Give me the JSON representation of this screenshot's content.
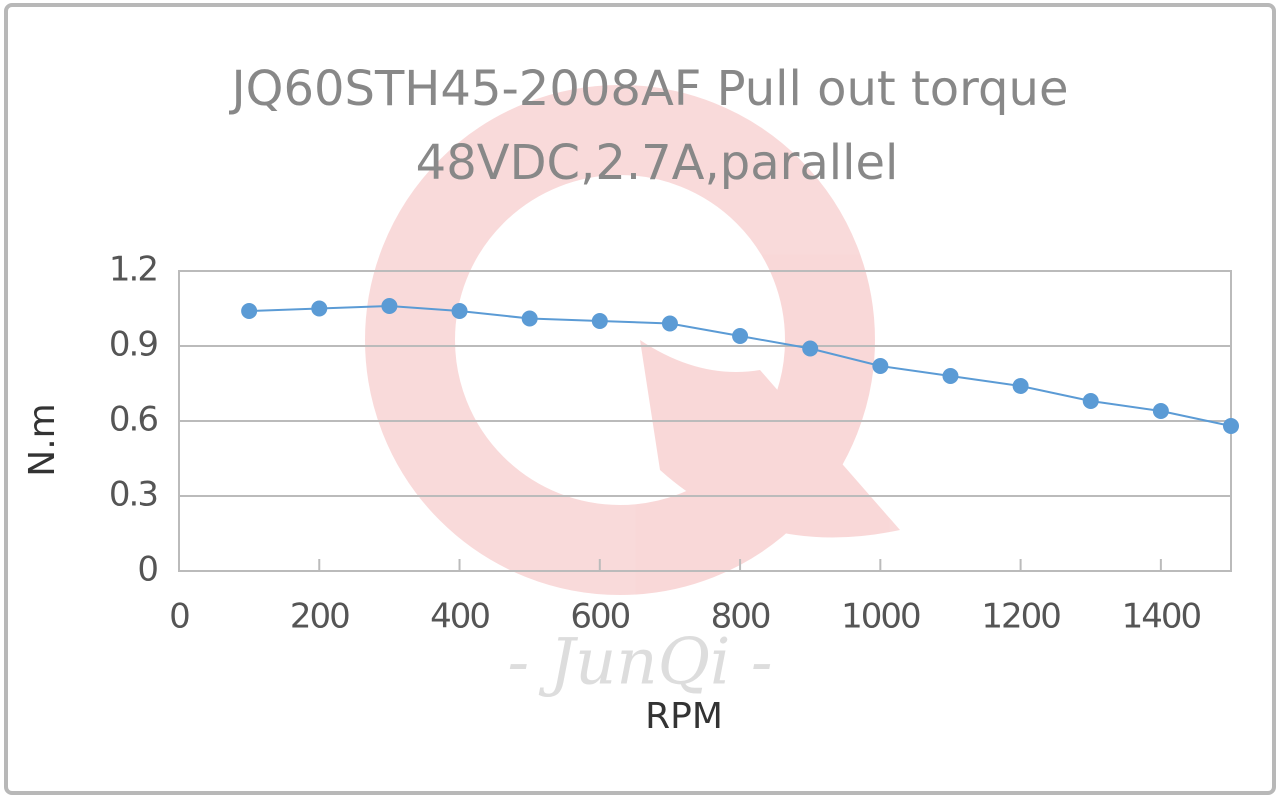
{
  "chart_data": {
    "type": "line",
    "title": [
      "JQ60STH45-2008AF Pull out torque",
      "48VDC,2.7A,parallel"
    ],
    "watermark": "- JunQi -",
    "x_label": "RPM",
    "y_label": "N.m",
    "x": [
      100,
      200,
      300,
      400,
      500,
      600,
      700,
      800,
      900,
      1000,
      1100,
      1200,
      1300,
      1400,
      1500
    ],
    "series": [
      {
        "name": "Pull out torque",
        "color": "#5b9bd5",
        "values": [
          1.04,
          1.05,
          1.06,
          1.04,
          1.01,
          1.0,
          0.99,
          0.94,
          0.89,
          0.82,
          0.78,
          0.74,
          0.68,
          0.64,
          0.58
        ]
      }
    ],
    "xlim": [
      0,
      1500
    ],
    "xticks": [
      0,
      200,
      400,
      600,
      800,
      1000,
      1200,
      1400
    ],
    "ylim": [
      0,
      1.2
    ],
    "yticks": [
      0,
      0.3,
      0.6,
      0.9,
      1.2
    ],
    "grid": true
  }
}
